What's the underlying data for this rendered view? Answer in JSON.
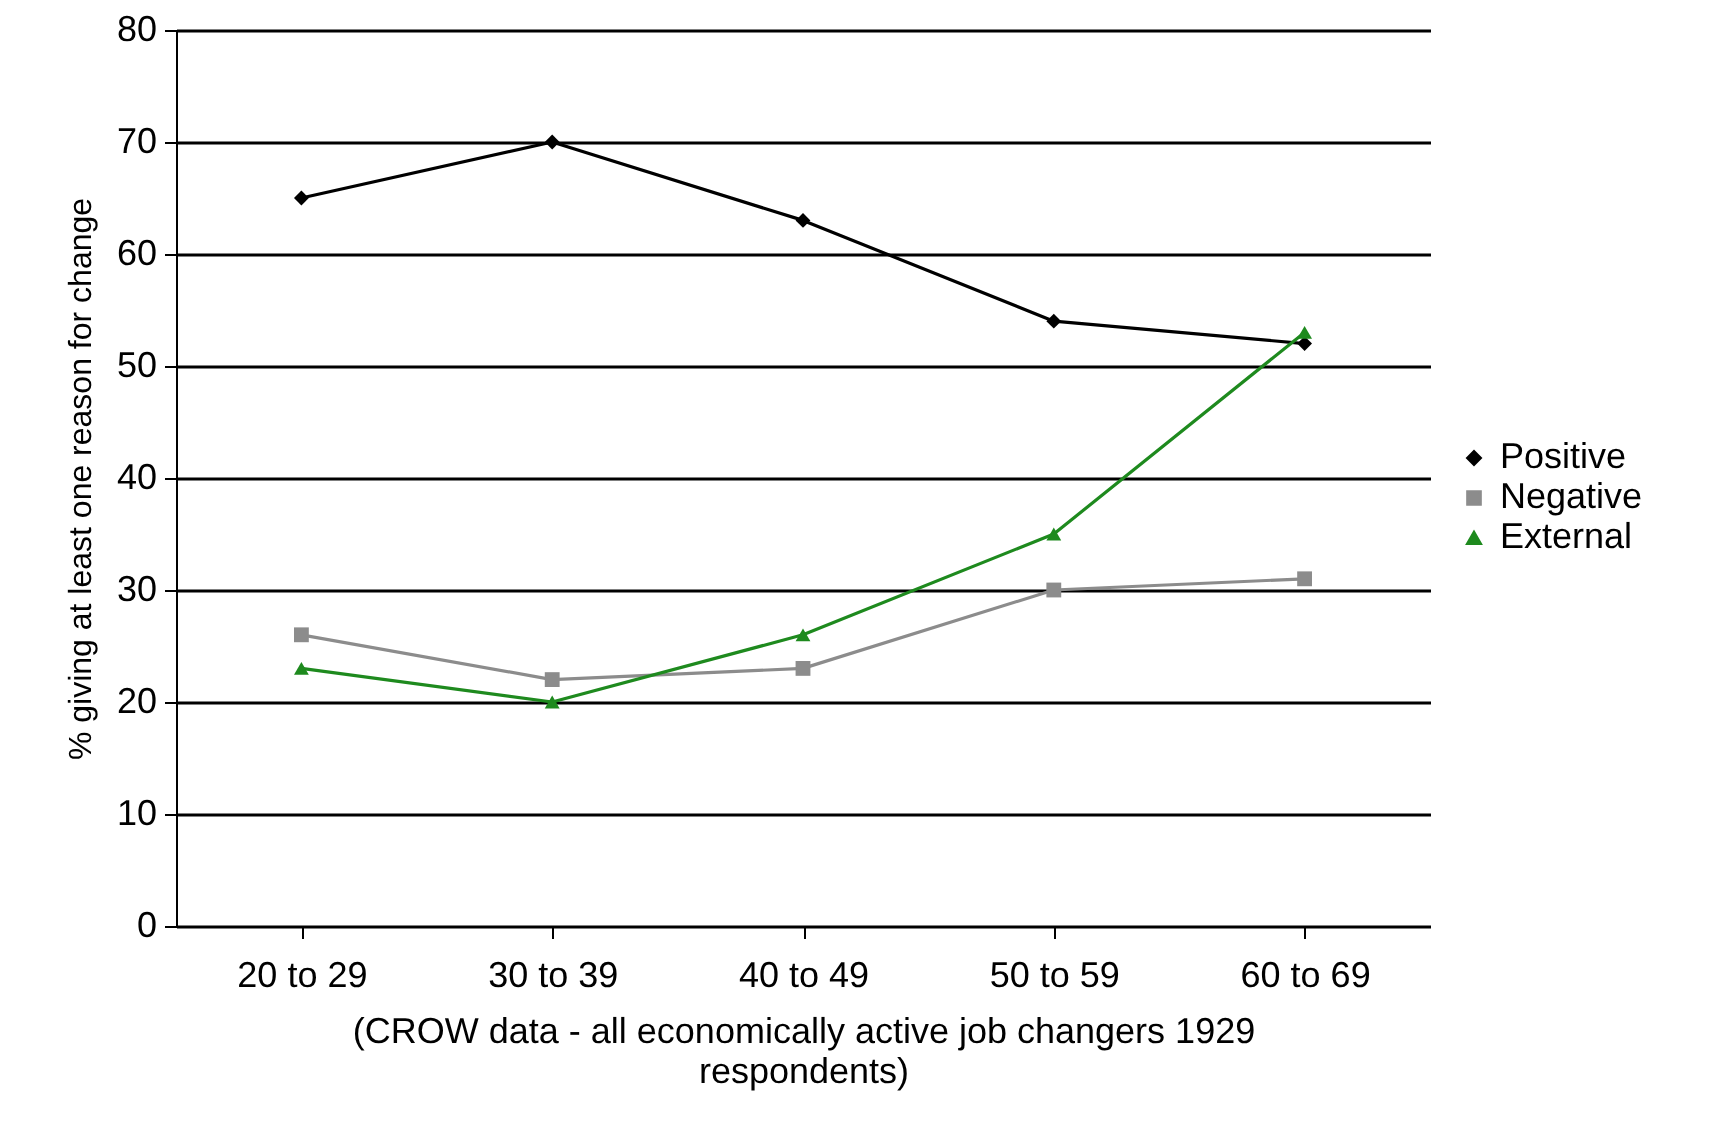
{
  "chart_data": {
    "type": "line",
    "ylabel": "% giving at least one reason for change",
    "xlabel": "(CROW data - all economically active job changers 1929 respondents)",
    "categories": [
      "20 to 29",
      "30 to 39",
      "40 to 49",
      "50 to 59",
      "60 to 69"
    ],
    "ylim": [
      0,
      80
    ],
    "yticks": [
      0,
      10,
      20,
      30,
      40,
      50,
      60,
      70,
      80
    ],
    "grid": "y",
    "legend": "right",
    "series": [
      {
        "name": "Positive",
        "color": "#000000",
        "marker": "diamond",
        "values": [
          65,
          70,
          63,
          54,
          52
        ]
      },
      {
        "name": "Negative",
        "color": "#8c8c8c",
        "marker": "square",
        "values": [
          26,
          22,
          23,
          30,
          31
        ]
      },
      {
        "name": "External",
        "color": "#1e8a1e",
        "marker": "triangle",
        "values": [
          23,
          20,
          26,
          35,
          53
        ]
      }
    ]
  }
}
